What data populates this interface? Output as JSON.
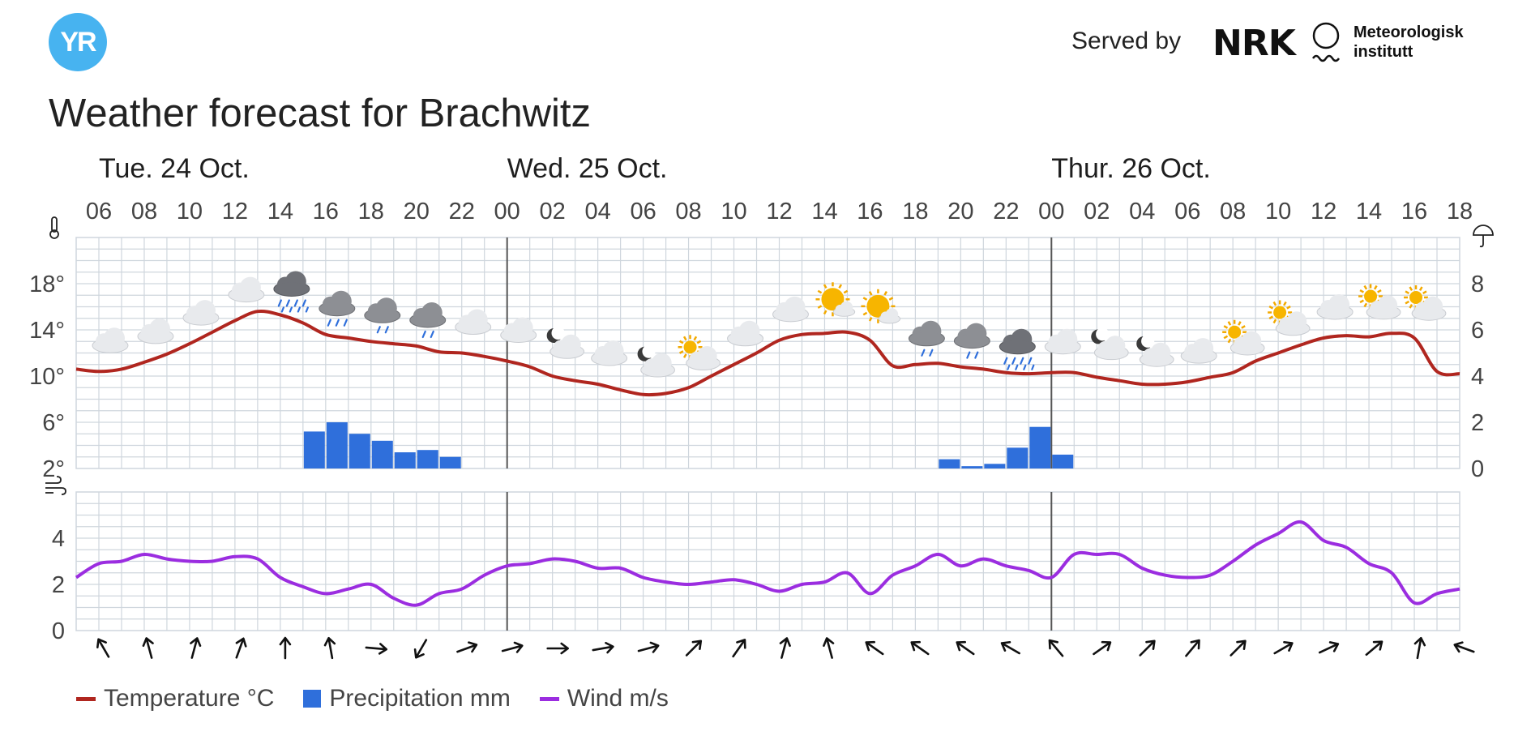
{
  "header": {
    "logo_text": "YR",
    "served_by": "Served by",
    "nrk_logo_text": "NRK",
    "met_line1": "Meteorologisk",
    "met_line2": "institutt"
  },
  "title": "Weather forecast for Brachwitz",
  "colors": {
    "temperature": "#b0261f",
    "precipitation": "#2f6fdb",
    "wind": "#9b2de0",
    "grid": "#cfd6dd",
    "text": "#1e1e1e",
    "yr_blue": "#47b3f0"
  },
  "chart_data": [
    {
      "type": "line",
      "name": "temperature-precipitation",
      "days": [
        {
          "label": "Tue. 24 Oct.",
          "x": 6
        },
        {
          "label": "Wed. 25 Oct.",
          "x": 24
        },
        {
          "label": "Thur. 26 Oct.",
          "x": 48
        }
      ],
      "x_ticks": [
        {
          "x": 6,
          "label": "06"
        },
        {
          "x": 8,
          "label": "08"
        },
        {
          "x": 10,
          "label": "10"
        },
        {
          "x": 12,
          "label": "12"
        },
        {
          "x": 14,
          "label": "14"
        },
        {
          "x": 16,
          "label": "16"
        },
        {
          "x": 18,
          "label": "18"
        },
        {
          "x": 20,
          "label": "20"
        },
        {
          "x": 22,
          "label": "22"
        },
        {
          "x": 24,
          "label": "00"
        },
        {
          "x": 26,
          "label": "02"
        },
        {
          "x": 28,
          "label": "04"
        },
        {
          "x": 30,
          "label": "06"
        },
        {
          "x": 32,
          "label": "08"
        },
        {
          "x": 34,
          "label": "10"
        },
        {
          "x": 36,
          "label": "12"
        },
        {
          "x": 38,
          "label": "14"
        },
        {
          "x": 40,
          "label": "16"
        },
        {
          "x": 42,
          "label": "18"
        },
        {
          "x": 44,
          "label": "20"
        },
        {
          "x": 46,
          "label": "22"
        },
        {
          "x": 48,
          "label": "00"
        },
        {
          "x": 50,
          "label": "02"
        },
        {
          "x": 52,
          "label": "04"
        },
        {
          "x": 54,
          "label": "06"
        },
        {
          "x": 56,
          "label": "08"
        },
        {
          "x": 58,
          "label": "10"
        },
        {
          "x": 60,
          "label": "12"
        },
        {
          "x": 62,
          "label": "14"
        },
        {
          "x": 64,
          "label": "16"
        },
        {
          "x": 66,
          "label": "18"
        }
      ],
      "xlim": [
        5,
        66
      ],
      "day_boundaries": [
        24,
        48
      ],
      "y_left": {
        "ticks": [
          {
            "v": 2,
            "label": "2°"
          },
          {
            "v": 6,
            "label": "6°"
          },
          {
            "v": 10,
            "label": "10°"
          },
          {
            "v": 14,
            "label": "14°"
          },
          {
            "v": 18,
            "label": "18°"
          }
        ],
        "lim": [
          2,
          22
        ]
      },
      "y_right": {
        "ticks": [
          {
            "v": 0,
            "label": "0"
          },
          {
            "v": 2,
            "label": "2"
          },
          {
            "v": 4,
            "label": "4"
          },
          {
            "v": 6,
            "label": "6"
          },
          {
            "v": 8,
            "label": "8"
          }
        ],
        "lim": [
          0,
          10
        ]
      },
      "series": [
        {
          "name": "Temperature °C",
          "x": [
            5,
            6,
            7,
            8,
            9,
            10,
            11,
            12,
            13,
            14,
            15,
            16,
            17,
            18,
            19,
            20,
            21,
            22,
            23,
            24,
            25,
            26,
            27,
            28,
            29,
            30,
            31,
            32,
            33,
            34,
            35,
            36,
            37,
            38,
            39,
            40,
            41,
            42,
            43,
            44,
            45,
            46,
            47,
            48,
            49,
            50,
            51,
            52,
            53,
            54,
            55,
            56,
            57,
            58,
            59,
            60,
            61,
            62,
            63,
            64,
            65,
            66
          ],
          "values": [
            10.6,
            10.4,
            10.6,
            11.2,
            11.9,
            12.8,
            13.8,
            14.8,
            15.6,
            15.3,
            14.6,
            13.6,
            13.3,
            13.0,
            12.8,
            12.6,
            12.1,
            12.0,
            11.7,
            11.3,
            10.8,
            10.0,
            9.6,
            9.3,
            8.8,
            8.4,
            8.5,
            9.0,
            10.0,
            11.0,
            12.0,
            13.1,
            13.6,
            13.7,
            13.8,
            13.1,
            10.9,
            11.0,
            11.1,
            10.8,
            10.6,
            10.3,
            10.2,
            10.3,
            10.3,
            9.9,
            9.6,
            9.3,
            9.3,
            9.5,
            9.9,
            10.3,
            11.3,
            12.0,
            12.7,
            13.3,
            13.5,
            13.4,
            13.7,
            13.3,
            10.4,
            10.2
          ]
        },
        {
          "name": "Precipitation mm",
          "type": "bar",
          "axis": "right",
          "bars": [
            {
              "x": 15,
              "v": 1.6
            },
            {
              "x": 16,
              "v": 2.0
            },
            {
              "x": 17,
              "v": 1.5
            },
            {
              "x": 18,
              "v": 1.2
            },
            {
              "x": 19,
              "v": 0.7
            },
            {
              "x": 20,
              "v": 0.8
            },
            {
              "x": 21,
              "v": 0.5
            },
            {
              "x": 43,
              "v": 0.4
            },
            {
              "x": 44,
              "v": 0.1
            },
            {
              "x": 45,
              "v": 0.2
            },
            {
              "x": 46,
              "v": 0.9
            },
            {
              "x": 47,
              "v": 1.8
            },
            {
              "x": 48,
              "v": 0.6
            }
          ]
        }
      ],
      "symbols": [
        {
          "x": 6,
          "icon": "cloudy"
        },
        {
          "x": 8,
          "icon": "cloudy"
        },
        {
          "x": 10,
          "icon": "cloudy"
        },
        {
          "x": 12,
          "icon": "cloudy"
        },
        {
          "x": 14,
          "icon": "heavy-rain"
        },
        {
          "x": 16,
          "icon": "rain"
        },
        {
          "x": 18,
          "icon": "light-rain"
        },
        {
          "x": 20,
          "icon": "light-rain"
        },
        {
          "x": 22,
          "icon": "cloudy"
        },
        {
          "x": 24,
          "icon": "cloudy"
        },
        {
          "x": 26,
          "icon": "partly-cloudy-night"
        },
        {
          "x": 28,
          "icon": "cloudy"
        },
        {
          "x": 30,
          "icon": "partly-cloudy-night"
        },
        {
          "x": 32,
          "icon": "partly-cloudy-day"
        },
        {
          "x": 34,
          "icon": "cloudy"
        },
        {
          "x": 36,
          "icon": "cloudy"
        },
        {
          "x": 38,
          "icon": "fair-day"
        },
        {
          "x": 40,
          "icon": "fair-day"
        },
        {
          "x": 42,
          "icon": "light-rain"
        },
        {
          "x": 44,
          "icon": "light-rain"
        },
        {
          "x": 46,
          "icon": "heavy-rain"
        },
        {
          "x": 48,
          "icon": "cloudy"
        },
        {
          "x": 50,
          "icon": "partly-cloudy-night"
        },
        {
          "x": 52,
          "icon": "partly-cloudy-night"
        },
        {
          "x": 54,
          "icon": "cloudy"
        },
        {
          "x": 56,
          "icon": "partly-cloudy-day"
        },
        {
          "x": 58,
          "icon": "partly-cloudy-day"
        },
        {
          "x": 60,
          "icon": "cloudy"
        },
        {
          "x": 62,
          "icon": "partly-cloudy-day"
        },
        {
          "x": 64,
          "icon": "partly-cloudy-day"
        }
      ]
    },
    {
      "type": "line",
      "name": "wind",
      "y": {
        "ticks": [
          {
            "v": 0,
            "label": "0"
          },
          {
            "v": 2,
            "label": "2"
          },
          {
            "v": 4,
            "label": "4"
          }
        ],
        "lim": [
          0,
          6
        ]
      },
      "series": [
        {
          "name": "Wind m/s",
          "x": [
            5,
            6,
            7,
            8,
            9,
            10,
            11,
            12,
            13,
            14,
            15,
            16,
            17,
            18,
            19,
            20,
            21,
            22,
            23,
            24,
            25,
            26,
            27,
            28,
            29,
            30,
            31,
            32,
            33,
            34,
            35,
            36,
            37,
            38,
            39,
            40,
            41,
            42,
            43,
            44,
            45,
            46,
            47,
            48,
            49,
            50,
            51,
            52,
            53,
            54,
            55,
            56,
            57,
            58,
            59,
            60,
            61,
            62,
            63,
            64,
            65,
            66
          ],
          "values": [
            2.3,
            2.9,
            3.0,
            3.3,
            3.1,
            3.0,
            3.0,
            3.2,
            3.1,
            2.3,
            1.9,
            1.6,
            1.8,
            2.0,
            1.4,
            1.1,
            1.6,
            1.8,
            2.4,
            2.8,
            2.9,
            3.1,
            3.0,
            2.7,
            2.7,
            2.3,
            2.1,
            2.0,
            2.1,
            2.2,
            2.0,
            1.7,
            2.0,
            2.1,
            2.5,
            1.6,
            2.4,
            2.8,
            3.3,
            2.8,
            3.1,
            2.8,
            2.6,
            2.3,
            3.3,
            3.3,
            3.3,
            2.7,
            2.4,
            2.3,
            2.4,
            3.0,
            3.7,
            4.2,
            4.7,
            3.9,
            3.6,
            2.9,
            2.5,
            1.2,
            1.6,
            1.8
          ]
        }
      ],
      "arrows": [
        {
          "x": 6,
          "deg": 330
        },
        {
          "x": 8,
          "deg": 345
        },
        {
          "x": 10,
          "deg": 15
        },
        {
          "x": 12,
          "deg": 20
        },
        {
          "x": 14,
          "deg": 0
        },
        {
          "x": 16,
          "deg": 350
        },
        {
          "x": 18,
          "deg": 95
        },
        {
          "x": 20,
          "deg": 210
        },
        {
          "x": 22,
          "deg": 70
        },
        {
          "x": 24,
          "deg": 75
        },
        {
          "x": 26,
          "deg": 90
        },
        {
          "x": 28,
          "deg": 80
        },
        {
          "x": 30,
          "deg": 75
        },
        {
          "x": 32,
          "deg": 45
        },
        {
          "x": 34,
          "deg": 35
        },
        {
          "x": 36,
          "deg": 15
        },
        {
          "x": 38,
          "deg": 345
        },
        {
          "x": 40,
          "deg": 305
        },
        {
          "x": 42,
          "deg": 305
        },
        {
          "x": 44,
          "deg": 305
        },
        {
          "x": 46,
          "deg": 300
        },
        {
          "x": 48,
          "deg": 320
        },
        {
          "x": 50,
          "deg": 55
        },
        {
          "x": 52,
          "deg": 45
        },
        {
          "x": 54,
          "deg": 40
        },
        {
          "x": 56,
          "deg": 45
        },
        {
          "x": 58,
          "deg": 60
        },
        {
          "x": 60,
          "deg": 65
        },
        {
          "x": 62,
          "deg": 50
        },
        {
          "x": 64,
          "deg": 10
        },
        {
          "x": 66,
          "deg": 290
        }
      ]
    }
  ],
  "legend": [
    {
      "label": "Temperature °C",
      "color": "#b0261f",
      "kind": "line"
    },
    {
      "label": "Precipitation mm",
      "color": "#2f6fdb",
      "kind": "box"
    },
    {
      "label": "Wind m/s",
      "color": "#9b2de0",
      "kind": "line"
    }
  ]
}
